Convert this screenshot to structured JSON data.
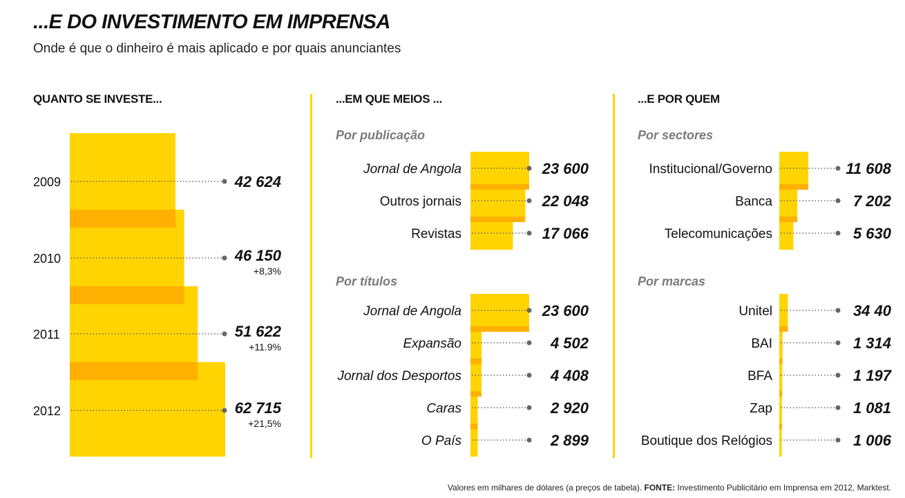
{
  "title": "...E DO INVESTIMENTO EM IMPRENSA",
  "subtitle": "Onde é que o dinheiro é mais aplicado e por quais anunciantes",
  "footer": {
    "prefix": "Valores em milhares de dólares (a preços de tabela).",
    "source_label": "FONTE:",
    "source_text": "Investimento Publicitário em Imprensa em 2012, Marktest."
  },
  "colors": {
    "bar": "#ffd400",
    "overlap": "#ffb000",
    "line": "#ffd400",
    "dots": "#666666"
  },
  "chart_data": [
    {
      "type": "bar",
      "section_title": "QUANTO SE INVESTE...",
      "orientation": "horizontal",
      "categories": [
        "2009",
        "2010",
        "2011",
        "2012"
      ],
      "values": [
        42624,
        46150,
        51622,
        62715
      ],
      "value_labels": [
        "42 624",
        "46 150",
        "51 622",
        "62 715"
      ],
      "changes": [
        "",
        "+8,3%",
        "+11.9%",
        "+21,5%"
      ]
    },
    {
      "type": "bar",
      "section_title": "...EM QUE MEIOS ...",
      "groups": [
        {
          "title": "Por publicação",
          "categories": [
            "Jornal de Angola",
            "Outros jornais",
            "Revistas"
          ],
          "italic": [
            true,
            false,
            false
          ],
          "values": [
            23600,
            22048,
            17066
          ],
          "value_labels": [
            "23 600",
            "22 048",
            "17 066"
          ]
        },
        {
          "title": "Por títulos",
          "categories": [
            "Jornal de Angola",
            "Expansão",
            "Jornal dos Desportos",
            "Caras",
            "O País"
          ],
          "italic": [
            true,
            true,
            true,
            true,
            true
          ],
          "values": [
            23600,
            4502,
            4408,
            2920,
            2899
          ],
          "value_labels": [
            "23 600",
            "4 502",
            "4 408",
            "2 920",
            "2 899"
          ]
        }
      ]
    },
    {
      "type": "bar",
      "section_title": "...E POR QUEM",
      "groups": [
        {
          "title": "Por sectores",
          "categories": [
            "Institucional/Governo",
            "Banca",
            "Telecomunicações"
          ],
          "values": [
            11608,
            7202,
            5630
          ],
          "value_labels": [
            "11 608",
            "7 202",
            "5 630"
          ]
        },
        {
          "title": "Por marcas",
          "categories": [
            "Unitel",
            "BAI",
            "BFA",
            "Zap",
            "Boutique dos Relógios"
          ],
          "values": [
            3440,
            1314,
            1197,
            1081,
            1006
          ],
          "value_labels": [
            "34 40",
            "1 314",
            "1 197",
            "1 081",
            "1 006"
          ]
        }
      ]
    }
  ]
}
